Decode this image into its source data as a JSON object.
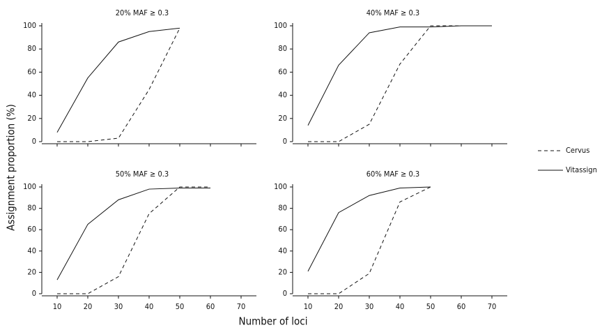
{
  "xlabel": "Number of loci",
  "ylabel": "Assignment proportion (%)",
  "chart_data": [
    {
      "type": "line",
      "title": "20% MAF ≥ 0.3",
      "x": [
        10,
        20,
        30,
        40,
        50
      ],
      "series": [
        {
          "name": "Cervus",
          "color": "#111111",
          "style": "dashed",
          "values": [
            0,
            0,
            3,
            45,
            98
          ]
        },
        {
          "name": "Vitassign",
          "color": "#111111",
          "style": "solid",
          "values": [
            8,
            55,
            86,
            95,
            98
          ]
        }
      ],
      "xlim": [
        5,
        75
      ],
      "xticks": [
        10,
        20,
        30,
        40,
        50,
        60,
        70
      ],
      "show_xtick_labels": false,
      "ylim": [
        0,
        100
      ],
      "yticks": [
        0,
        20,
        40,
        60,
        80,
        100
      ]
    },
    {
      "type": "line",
      "title": "40% MAF ≥ 0.3",
      "x": [
        10,
        20,
        30,
        40,
        50,
        60,
        70
      ],
      "series": [
        {
          "name": "Cervus",
          "color": "#111111",
          "style": "dashed",
          "values": [
            0,
            0,
            15,
            67,
            100,
            100,
            100
          ]
        },
        {
          "name": "Vitassign",
          "color": "#111111",
          "style": "solid",
          "values": [
            14,
            66,
            94,
            99,
            99,
            100,
            100
          ]
        }
      ],
      "xlim": [
        5,
        75
      ],
      "xticks": [
        10,
        20,
        30,
        40,
        50,
        60,
        70
      ],
      "show_xtick_labels": false,
      "ylim": [
        0,
        100
      ],
      "yticks": [
        0,
        20,
        40,
        60,
        80,
        100
      ]
    },
    {
      "type": "line",
      "title": "50% MAF ≥ 0.3",
      "x": [
        10,
        20,
        30,
        40,
        50,
        60
      ],
      "series": [
        {
          "name": "Cervus",
          "color": "#111111",
          "style": "dashed",
          "values": [
            0,
            0,
            16,
            75,
            100,
            100
          ]
        },
        {
          "name": "Vitassign",
          "color": "#111111",
          "style": "solid",
          "values": [
            13,
            65,
            88,
            98,
            99,
            99
          ]
        }
      ],
      "xlim": [
        5,
        75
      ],
      "xticks": [
        10,
        20,
        30,
        40,
        50,
        60,
        70
      ],
      "show_xtick_labels": true,
      "ylim": [
        0,
        100
      ],
      "yticks": [
        0,
        20,
        40,
        60,
        80,
        100
      ]
    },
    {
      "type": "line",
      "title": "60% MAF ≥ 0.3",
      "x": [
        10,
        20,
        30,
        40,
        50
      ],
      "series": [
        {
          "name": "Cervus",
          "color": "#111111",
          "style": "dashed",
          "values": [
            0,
            0,
            19,
            86,
            100
          ]
        },
        {
          "name": "Vitassign",
          "color": "#111111",
          "style": "solid",
          "values": [
            21,
            76,
            92,
            99,
            100
          ]
        }
      ],
      "xlim": [
        5,
        75
      ],
      "xticks": [
        10,
        20,
        30,
        40,
        50,
        60,
        70
      ],
      "show_xtick_labels": true,
      "ylim": [
        0,
        100
      ],
      "yticks": [
        0,
        20,
        40,
        60,
        80,
        100
      ]
    }
  ]
}
